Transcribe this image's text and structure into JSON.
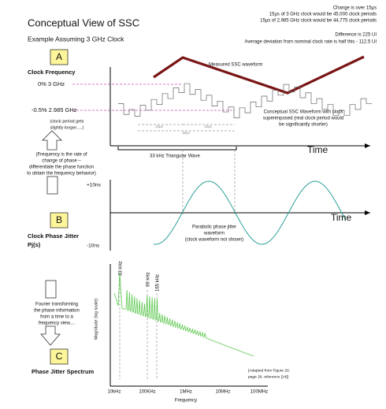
{
  "header": {
    "title": "Conceptual View of SSC",
    "subtitle": "Example Assuming 3 GHz Clock",
    "notes": [
      "Change is over 15µs",
      "15µs of 3 GHz clock would be 45,000 clock periods",
      "15µs of 2.985 GHz clock would be 44,775 clock periods",
      "Difference is 225 UI",
      "Average deviation from nominal clock rate is half this - 112.5 UI"
    ]
  },
  "section_a": {
    "letter": "A",
    "label": "Clock Frequency",
    "level_high": "0% 3 GHz",
    "level_low": "-0.5% 2.985 GHz",
    "period_note": [
      "(clock period gets",
      "slightly longer.....)"
    ],
    "measured_label": "Measured SSC waveform",
    "conceptual_label": [
      "Conceptual SSC Waveform with clock",
      "superimposed (real clock period would",
      "be significantly shorter)"
    ],
    "span_half_1": "15µs",
    "span_half_2": "15µs",
    "span_full": "30µs",
    "axis_label": "Time",
    "triangle_label": "33 kHz Triangular Wave",
    "derivative_note": [
      "(Frequency is the rate of",
      "change of phase –",
      "differentiate the phase function",
      "to obtain the frequency behavior)"
    ]
  },
  "section_b": {
    "letter": "B",
    "label": [
      "Clock Phase Jitter",
      "Pj(s)"
    ],
    "level_high": "+10ns",
    "level_low": "-10ns",
    "axis_label": "Time",
    "waveform_label": [
      "Parabolic phase jitter",
      "waveform",
      "(clock waveform not shown)"
    ]
  },
  "section_c": {
    "letter": "C",
    "label": "Phase Jitter Spectrum",
    "fourier_note": [
      "Fourier transforming",
      "the phase information",
      "from a time to a",
      "frequency view...."
    ],
    "peaks": [
      "33 kHz",
      "99 kHz",
      "165 kHz"
    ],
    "y_label": "Magnitude (log scale)",
    "source": [
      "[Adapted from Figure 20,",
      "page 28, reference [14]]"
    ],
    "x_ticks": [
      "10kHz",
      "100KHz",
      "1MHz",
      "10MHz",
      "100MHz"
    ],
    "x_label": "Frequency"
  }
}
